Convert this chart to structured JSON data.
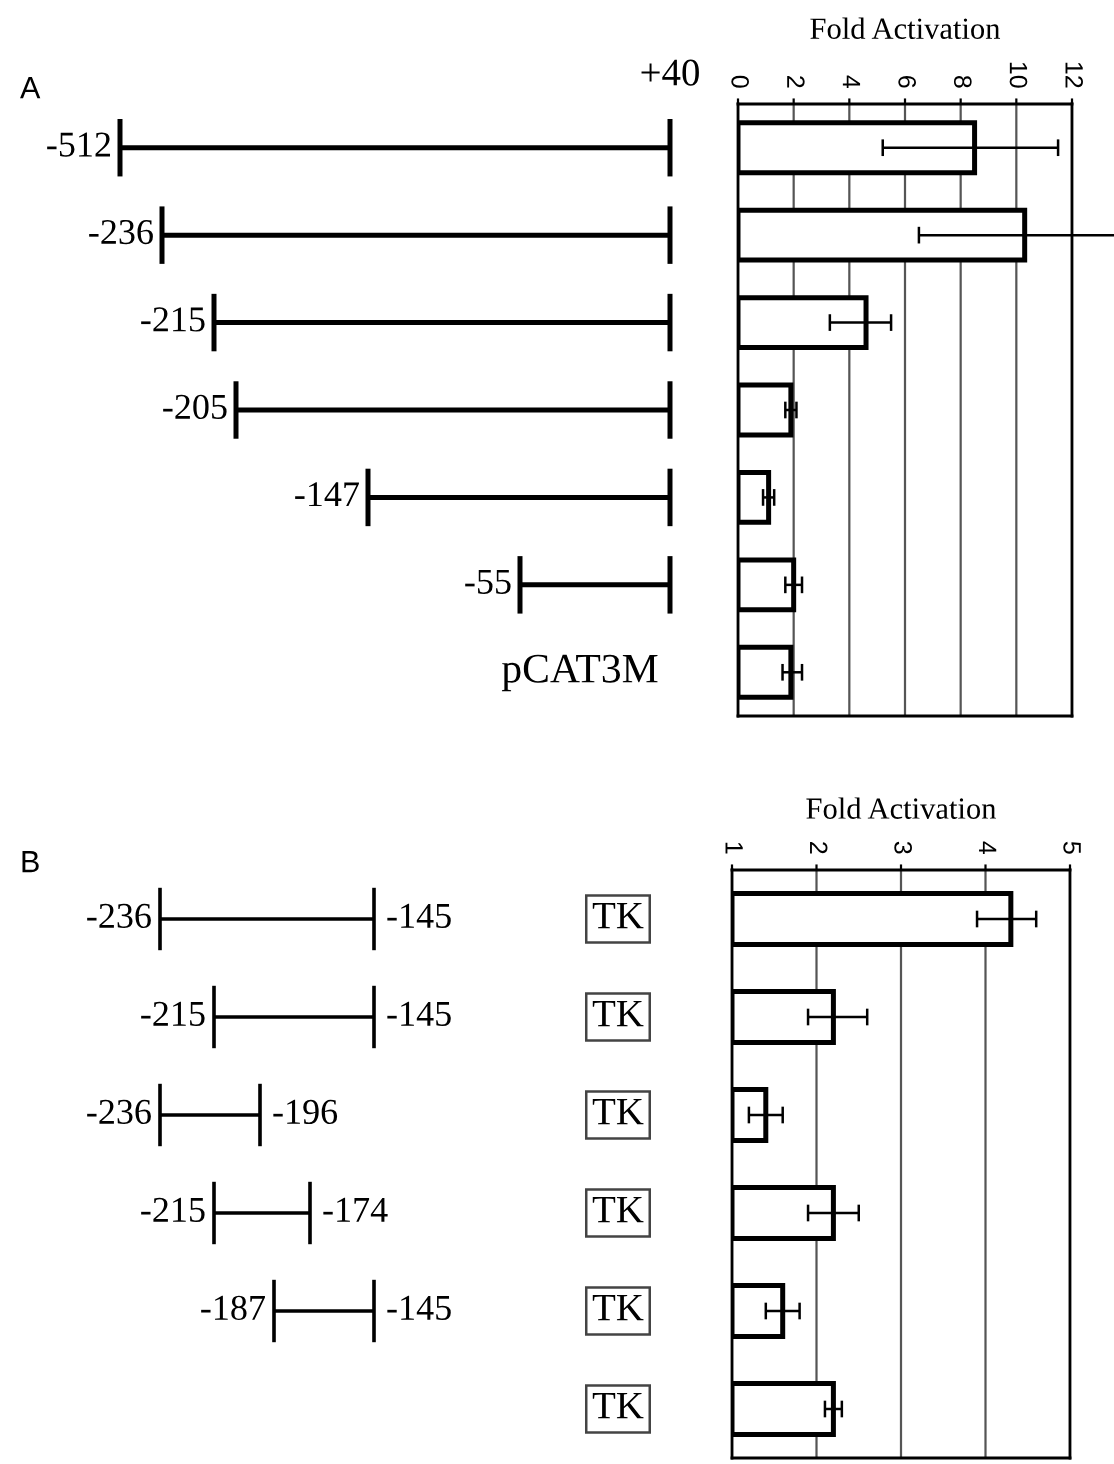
{
  "chart_data": [
    {
      "type": "bar",
      "orientation": "horizontal",
      "xlabel": "Fold Activation",
      "categories": [
        null,
        null,
        null,
        null,
        null,
        null,
        null
      ],
      "values": [
        8.5,
        10.3,
        4.6,
        1.9,
        1.1,
        2.0,
        1.9
      ],
      "errors": [
        [
          5.2,
          11.5
        ],
        [
          6.5,
          13.7
        ],
        [
          3.3,
          5.5
        ],
        [
          1.7,
          2.1
        ],
        [
          0.9,
          1.3
        ],
        [
          1.7,
          2.3
        ],
        [
          1.6,
          2.3
        ]
      ],
      "color": "#ffffff",
      "xlim": [
        0,
        12
      ],
      "xticks": [
        0,
        2,
        4,
        6,
        8,
        10,
        12
      ],
      "grid": "x",
      "annotations": [
        "A",
        "+40",
        "-512",
        "-236",
        "-215",
        "-205",
        "-147",
        "-55",
        "pCAT3M"
      ]
    },
    {
      "type": "bar",
      "orientation": "horizontal",
      "xlabel": "Fold Activation",
      "categories": [
        null,
        null,
        null,
        null,
        null,
        null
      ],
      "values": [
        4.3,
        2.2,
        1.4,
        2.2,
        1.6,
        2.2
      ],
      "errors": [
        [
          3.9,
          4.6
        ],
        [
          1.9,
          2.6
        ],
        [
          1.2,
          1.6
        ],
        [
          1.9,
          2.5
        ],
        [
          1.4,
          1.8
        ],
        [
          2.1,
          2.3
        ]
      ],
      "color": "#ffffff",
      "xlim": [
        1,
        5
      ],
      "xticks": [
        1,
        2,
        3,
        4,
        5
      ],
      "grid": "x",
      "annotations": [
        "B",
        "-236",
        "-215",
        "-236",
        "-215",
        "-187",
        "-145",
        "-145",
        "-196",
        "-174",
        "-145",
        "TK",
        "TK",
        "TK",
        "TK",
        "TK",
        "TK"
      ]
    }
  ]
}
